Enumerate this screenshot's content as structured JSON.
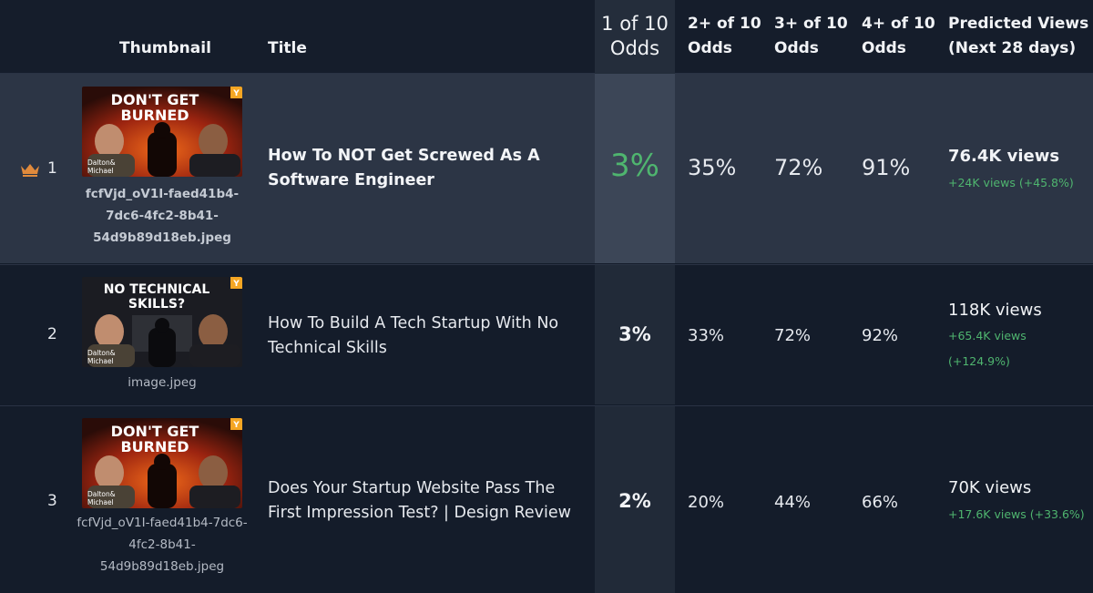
{
  "header": {
    "thumbnail": "Thumbnail",
    "title": "Title",
    "odds1_line1": "1 of 10",
    "odds1_line2": "Odds",
    "odds2_line1": "2+ of 10",
    "odds2_line2": "Odds",
    "odds3_line1": "3+ of 10",
    "odds3_line2": "Odds",
    "odds4_line1": "4+ of 10",
    "odds4_line2": "Odds",
    "views_line1": "Predicted Views",
    "views_line2": "(Next 28 days)"
  },
  "colors": {
    "accent_green": "#4fb56f",
    "crown": "#e08a3c",
    "selected_row": "#2c3545"
  },
  "rows": [
    {
      "rank": "1",
      "winner_icon": "crown-icon",
      "thumb_text_line1": "DON'T GET",
      "thumb_text_line2": "BURNED",
      "thumb_caption1": "Dalton&",
      "thumb_caption2": "Michael",
      "thumb_badge": "Y",
      "filename_l1": "fcfVjd_oV1I-faed41b4-",
      "filename_l2": "7dc6-4fc2-8b41-",
      "filename_l3": "54d9b89d18eb.jpeg",
      "title_l1": "How To NOT Get Screwed As A",
      "title_l2": "Software Engineer",
      "odds1": "3%",
      "odds2": "35%",
      "odds3": "72%",
      "odds4": "91%",
      "views": "76.4K views",
      "delta": "+24K views (+45.8%)"
    },
    {
      "rank": "2",
      "thumb_text_line1": "NO TECHNICAL",
      "thumb_text_line2": "SKILLS?",
      "thumb_caption1": "Dalton&",
      "thumb_caption2": "Michael",
      "thumb_badge": "Y",
      "filename_l1": "image.jpeg",
      "title_l1": "How To Build A Tech Startup With No",
      "title_l2": "Technical Skills",
      "odds1": "3%",
      "odds2": "33%",
      "odds3": "72%",
      "odds4": "92%",
      "views": "118K views",
      "delta_l1": "+65.4K views",
      "delta_l2": "(+124.9%)"
    },
    {
      "rank": "3",
      "thumb_text_line1": "DON'T GET",
      "thumb_text_line2": "BURNED",
      "thumb_caption1": "Dalton&",
      "thumb_caption2": "Michael",
      "thumb_badge": "Y",
      "filename_l1": "fcfVjd_oV1I-faed41b4-7dc6-",
      "filename_l2": "4fc2-8b41-",
      "filename_l3": "54d9b89d18eb.jpeg",
      "title_l1": "Does Your Startup Website Pass The",
      "title_l2": "First Impression Test? | Design Review",
      "odds1": "2%",
      "odds2": "20%",
      "odds3": "44%",
      "odds4": "66%",
      "views": "70K views",
      "delta": "+17.6K views (+33.6%)"
    }
  ]
}
